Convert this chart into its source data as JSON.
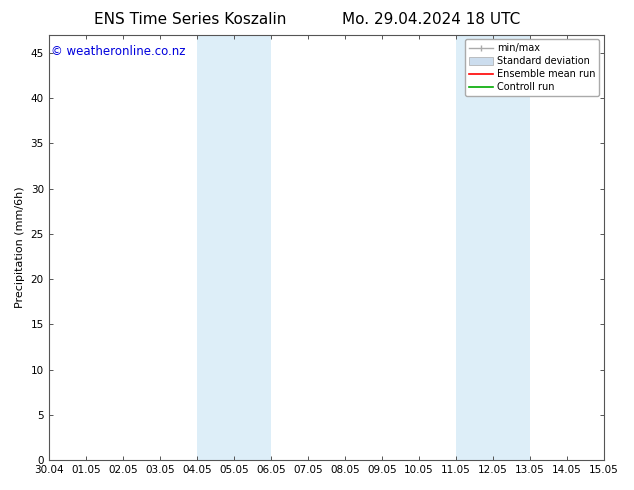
{
  "title_left": "ENS Time Series Koszalin",
  "title_right": "Mo. 29.04.2024 18 UTC",
  "ylabel": "Precipitation (mm/6h)",
  "watermark": "© weatheronline.co.nz",
  "watermark_color": "#0000dd",
  "background_color": "#ffffff",
  "plot_bg_color": "#ffffff",
  "xmin": 0,
  "xmax": 360,
  "ymin": 0,
  "ymax": 47,
  "yticks": [
    0,
    5,
    10,
    15,
    20,
    25,
    30,
    35,
    40,
    45
  ],
  "x_tick_labels": [
    "30.04",
    "01.05",
    "02.05",
    "03.05",
    "04.05",
    "05.05",
    "06.05",
    "07.05",
    "08.05",
    "09.05",
    "10.05",
    "11.05",
    "12.05",
    "13.05",
    "14.05",
    "15.05"
  ],
  "x_tick_positions": [
    0,
    24,
    48,
    72,
    96,
    120,
    144,
    168,
    192,
    216,
    240,
    264,
    288,
    312,
    336,
    360
  ],
  "shaded_regions": [
    {
      "xstart": 96,
      "xend": 144,
      "color": "#ddeef8"
    },
    {
      "xstart": 264,
      "xend": 312,
      "color": "#ddeef8"
    }
  ],
  "legend_labels": [
    "min/max",
    "Standard deviation",
    "Ensemble mean run",
    "Controll run"
  ],
  "legend_colors": [
    "#aaaaaa",
    "#ccddee",
    "#ff0000",
    "#00aa00"
  ],
  "title_fontsize": 11,
  "axis_fontsize": 8,
  "tick_fontsize": 7.5,
  "watermark_fontsize": 8.5,
  "legend_fontsize": 7
}
